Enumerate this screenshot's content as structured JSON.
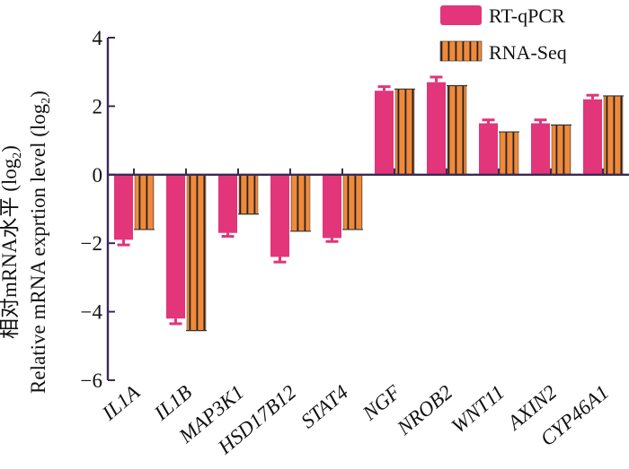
{
  "chart_data": {
    "type": "bar",
    "categories": [
      "IL1A",
      "IL1B",
      "MAP3K1",
      "HSD17B12",
      "STAT4",
      "NGF",
      "NROB2",
      "WNT11",
      "AXIN2",
      "CYP46A1"
    ],
    "series": [
      {
        "name": "RT-qPCR",
        "values": [
          -1.9,
          -4.2,
          -1.7,
          -2.4,
          -1.85,
          2.45,
          2.7,
          1.5,
          1.5,
          2.2
        ],
        "errors": [
          0.15,
          0.15,
          0.1,
          0.15,
          0.1,
          0.12,
          0.15,
          0.1,
          0.1,
          0.12
        ],
        "color": "#e2357a"
      },
      {
        "name": "RNA-Seq",
        "values": [
          -1.6,
          -4.55,
          -1.15,
          -1.65,
          -1.6,
          2.5,
          2.6,
          1.25,
          1.45,
          2.3
        ],
        "errors": [
          0,
          0,
          0,
          0,
          0,
          0,
          0,
          0,
          0,
          0
        ],
        "color": "#f08a3a"
      }
    ],
    "ylim": [
      -6,
      4
    ],
    "yticks": [
      -6,
      -4,
      -2,
      0,
      2,
      4
    ],
    "ylabel_line1": "相对mRNA水平 (log",
    "ylabel_line1_sub": "2",
    "ylabel_line1_end": ")",
    "ylabel_line2": "Relative mRNA exprtion level (log",
    "ylabel_line2_sub": "2",
    "ylabel_line2_end": ")",
    "legend_position": "top-right",
    "stripe_color": "#222222"
  }
}
